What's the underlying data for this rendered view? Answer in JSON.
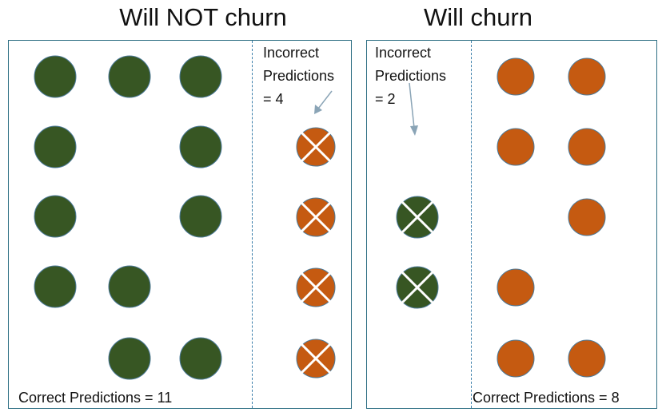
{
  "left_panel": {
    "title": "Will NOT churn",
    "incorrect_label": [
      "Incorrect",
      "Predictions",
      "= 4"
    ],
    "correct_label": "Correct Predictions = 11",
    "correct_count": 11,
    "incorrect_count": 4,
    "dot_color": "green",
    "incorrect_dot_color": "orange"
  },
  "right_panel": {
    "title": "Will churn",
    "incorrect_label": [
      "Incorrect",
      "Predictions",
      "= 2"
    ],
    "correct_label": "Correct Predictions = 8",
    "correct_count": 8,
    "incorrect_count": 2,
    "dot_color": "orange",
    "incorrect_dot_color": "green"
  },
  "colors": {
    "green": "#375623",
    "orange": "#c55a11",
    "panel_border": "#2e6f84",
    "divider": "#3b7faa",
    "arrow": "#8aa4b6"
  }
}
